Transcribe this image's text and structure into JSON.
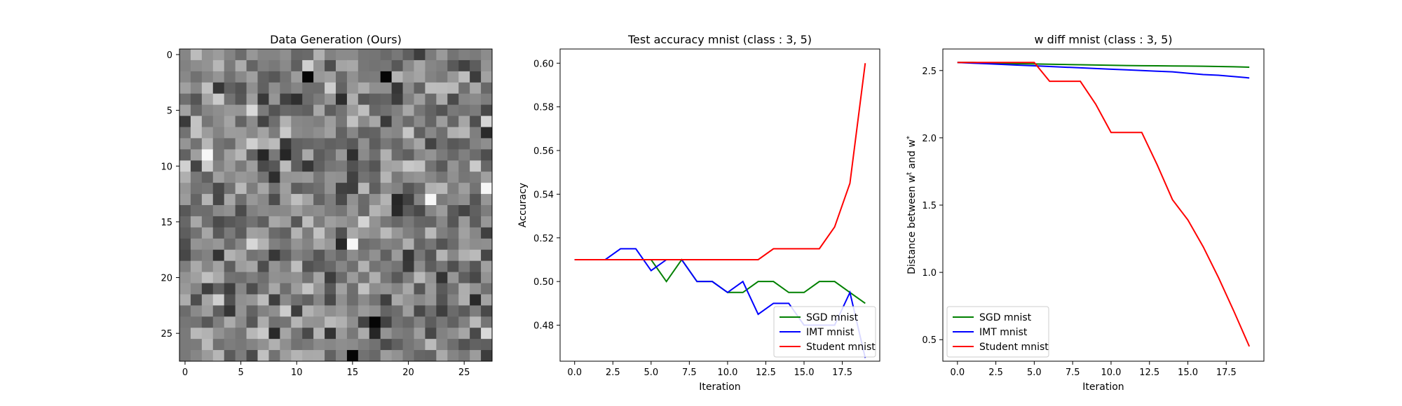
{
  "chart_data": [
    {
      "type": "heatmap",
      "title": "Data Generation (Ours)",
      "xlabel": "",
      "ylabel": "",
      "xticks": [
        0,
        5,
        10,
        15,
        20,
        25
      ],
      "yticks": [
        0,
        5,
        10,
        15,
        20,
        25
      ],
      "xlim": [
        -0.5,
        27.5
      ],
      "ylim": [
        27.5,
        -0.5
      ],
      "grid_size": [
        28,
        28
      ],
      "colormap": "gray",
      "dark_pixels": [
        [
          2,
          11
        ],
        [
          2,
          18
        ],
        [
          24,
          17
        ],
        [
          27,
          15
        ]
      ],
      "bright_pixels": [
        [
          9,
          2
        ],
        [
          13,
          22
        ],
        [
          12,
          27
        ],
        [
          17,
          15
        ]
      ]
    },
    {
      "type": "line",
      "title": "Test accuracy mnist (class : 3, 5)",
      "xlabel": "Iteration",
      "ylabel": "Accuracy",
      "xlim": [
        -0.95,
        19.95
      ],
      "ylim": [
        0.4635,
        0.6065
      ],
      "xticks": [
        0.0,
        2.5,
        5.0,
        7.5,
        10.0,
        12.5,
        15.0,
        17.5
      ],
      "xtick_labels": [
        "0.0",
        "2.5",
        "5.0",
        "7.5",
        "10.0",
        "12.5",
        "15.0",
        "17.5"
      ],
      "yticks": [
        0.48,
        0.5,
        0.52,
        0.54,
        0.56,
        0.58,
        0.6
      ],
      "ytick_labels": [
        "0.48",
        "0.50",
        "0.52",
        "0.54",
        "0.56",
        "0.58",
        "0.60"
      ],
      "grid": false,
      "legend": "lower-right",
      "x": [
        0,
        1,
        2,
        3,
        4,
        5,
        6,
        7,
        8,
        9,
        10,
        11,
        12,
        13,
        14,
        15,
        16,
        17,
        18,
        19
      ],
      "series": [
        {
          "name": "SGD mnist",
          "color": "#008000",
          "values": [
            0.51,
            0.51,
            0.51,
            0.51,
            0.51,
            0.51,
            0.5,
            0.51,
            0.5,
            0.5,
            0.495,
            0.495,
            0.5,
            0.5,
            0.495,
            0.495,
            0.5,
            0.5,
            0.495,
            0.49
          ]
        },
        {
          "name": "IMT mnist",
          "color": "#0000ff",
          "values": [
            0.51,
            0.51,
            0.51,
            0.515,
            0.515,
            0.505,
            0.51,
            0.51,
            0.5,
            0.5,
            0.495,
            0.5,
            0.485,
            0.49,
            0.49,
            0.48,
            0.48,
            0.48,
            0.495,
            0.465
          ]
        },
        {
          "name": "Student mnist",
          "color": "#ff0000",
          "values": [
            0.51,
            0.51,
            0.51,
            0.51,
            0.51,
            0.51,
            0.51,
            0.51,
            0.51,
            0.51,
            0.51,
            0.51,
            0.51,
            0.515,
            0.515,
            0.515,
            0.515,
            0.525,
            0.545,
            0.6
          ]
        }
      ]
    },
    {
      "type": "line",
      "title": "w diff mnist (class : 3, 5)",
      "xlabel": "Iteration",
      "ylabel": "Distance between w",
      "ylabel_sup1": "t",
      "ylabel_mid": " and w",
      "ylabel_sup2": "*",
      "xlim": [
        -0.95,
        19.95
      ],
      "ylim": [
        0.34,
        2.66
      ],
      "xticks": [
        0.0,
        2.5,
        5.0,
        7.5,
        10.0,
        12.5,
        15.0,
        17.5
      ],
      "xtick_labels": [
        "0.0",
        "2.5",
        "5.0",
        "7.5",
        "10.0",
        "12.5",
        "15.0",
        "17.5"
      ],
      "yticks": [
        0.5,
        1.0,
        1.5,
        2.0,
        2.5
      ],
      "ytick_labels": [
        "0.5",
        "1.0",
        "1.5",
        "2.0",
        "2.5"
      ],
      "grid": false,
      "legend": "lower-left",
      "x": [
        0,
        1,
        2,
        3,
        4,
        5,
        6,
        7,
        8,
        9,
        10,
        11,
        12,
        13,
        14,
        15,
        16,
        17,
        18,
        19
      ],
      "series": [
        {
          "name": "SGD mnist",
          "color": "#008000",
          "values": [
            2.56,
            2.56,
            2.555,
            2.553,
            2.551,
            2.549,
            2.547,
            2.545,
            2.543,
            2.541,
            2.539,
            2.537,
            2.536,
            2.535,
            2.534,
            2.533,
            2.532,
            2.53,
            2.528,
            2.525
          ]
        },
        {
          "name": "IMT mnist",
          "color": "#0000ff",
          "values": [
            2.56,
            2.555,
            2.55,
            2.545,
            2.54,
            2.535,
            2.53,
            2.525,
            2.52,
            2.515,
            2.51,
            2.505,
            2.5,
            2.495,
            2.49,
            2.48,
            2.47,
            2.465,
            2.455,
            2.445
          ]
        },
        {
          "name": "Student mnist",
          "color": "#ff0000",
          "values": [
            2.56,
            2.56,
            2.56,
            2.56,
            2.56,
            2.56,
            2.42,
            2.42,
            2.42,
            2.25,
            2.04,
            2.04,
            2.04,
            1.8,
            1.54,
            1.39,
            1.19,
            0.96,
            0.71,
            0.45
          ]
        }
      ]
    }
  ]
}
